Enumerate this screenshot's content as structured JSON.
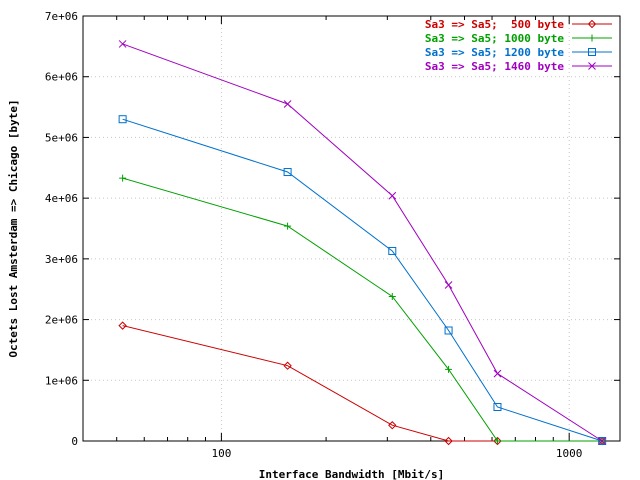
{
  "chart_data": {
    "type": "line",
    "title": "",
    "xlabel": "Interface Bandwidth [Mbit/s]",
    "ylabel": "Octets Lost Amsterdam => Chicago [byte]",
    "xscale": "log",
    "xlim": [
      40,
      1400
    ],
    "ylim": [
      0,
      7000000
    ],
    "grid": true,
    "legend_position": "top-right",
    "x_ticks": [
      {
        "value": 100,
        "label": "100"
      },
      {
        "value": 1000,
        "label": "1000"
      }
    ],
    "y_ticks": [
      {
        "value": 0,
        "label": "0"
      },
      {
        "value": 1000000,
        "label": "1e+06"
      },
      {
        "value": 2000000,
        "label": "2e+06"
      },
      {
        "value": 3000000,
        "label": "3e+06"
      },
      {
        "value": 4000000,
        "label": "4e+06"
      },
      {
        "value": 5000000,
        "label": "5e+06"
      },
      {
        "value": 6000000,
        "label": "6e+06"
      },
      {
        "value": 7000000,
        "label": "7e+06"
      }
    ],
    "x": [
      52,
      155,
      310,
      450,
      622,
      1244
    ],
    "series": [
      {
        "name": "Sa3 => Sa5;  500 byte",
        "color": "#cc0000",
        "marker": "diamond",
        "values": [
          1900000,
          1240000,
          260000,
          0,
          0,
          0
        ]
      },
      {
        "name": "Sa3 => Sa5; 1000 byte",
        "color": "#00a000",
        "marker": "plus",
        "values": [
          4330000,
          3540000,
          2380000,
          1180000,
          0,
          0
        ]
      },
      {
        "name": "Sa3 => Sa5; 1200 byte",
        "color": "#0070cc",
        "marker": "square",
        "values": [
          5300000,
          4430000,
          3130000,
          1820000,
          560000,
          0
        ]
      },
      {
        "name": "Sa3 => Sa5; 1460 byte",
        "color": "#a000c0",
        "marker": "cross",
        "values": [
          6540000,
          5550000,
          4040000,
          2570000,
          1110000,
          0
        ]
      }
    ]
  }
}
